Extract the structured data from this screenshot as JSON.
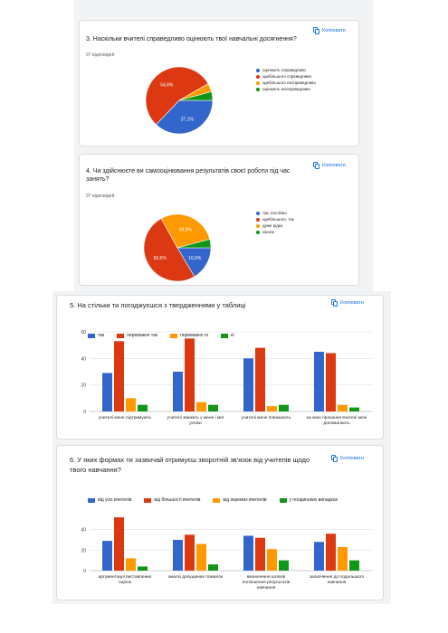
{
  "colors": {
    "blue": "#3366cc",
    "red": "#dc3912",
    "orange": "#ff9900",
    "green": "#109618"
  },
  "copy_label": "Копіювати",
  "cards": [
    {
      "question": "3. Наскільки вчителі справедливо оцінюють твої навчальні досягнення?",
      "responses": "97 відповідей",
      "chart_data": {
        "type": "pie",
        "labels": [
          "оцінюють справедливо",
          "здебільшого справедливо",
          "здебільшого несправедливо",
          "оцінюють несправедливо"
        ],
        "values": [
          37.1,
          54.6,
          4.1,
          4.2
        ],
        "data_labels": [
          "37,1%",
          "54,6%",
          "",
          ""
        ]
      }
    },
    {
      "question": "4. Чи здійснюєте ви самооцінювання результатів своєї роботи  під час занять?",
      "responses": "97 відповідей",
      "chart_data": {
        "type": "pie",
        "labels": [
          "так, постійно",
          "здебільшого, так",
          "дуже рідко",
          "ніколи"
        ],
        "values": [
          16.5,
          50.5,
          28.9,
          4.1
        ],
        "data_labels": [
          "16,5%",
          "50,5%",
          "28,9%",
          ""
        ]
      }
    },
    {
      "question": "5. На стільки ти погоджуєшся з твердженнями у таблиці",
      "chart_data": {
        "type": "bar",
        "categories": [
          "учителі мене підтримують",
          "учителі зважать у мене і мої успіхи",
          "учителі мене поважають",
          "на мою прохання вчителі мені допомагають"
        ],
        "ylim": [
          0,
          60
        ],
        "yticks": [
          0,
          20,
          40,
          60
        ],
        "series": [
          {
            "name": "так",
            "values": [
              29,
              30,
              40,
              45
            ]
          },
          {
            "name": "переважно так",
            "values": [
              53,
              55,
              48,
              44
            ]
          },
          {
            "name": "переважно ні",
            "values": [
              10,
              7,
              4,
              5
            ]
          },
          {
            "name": "ні",
            "values": [
              5,
              5,
              5,
              3
            ]
          }
        ]
      }
    },
    {
      "question": "6. У яких формах ти зазвичай  отримуєш зворотній зв'язок від учителів щодо твого навчання?",
      "chart_data": {
        "type": "bar",
        "categories": [
          "аргументація виставлених оцінок",
          "аналіз допущених помилок",
          "визначення шляхів поліпшення результатів навчання",
          "заохочення до подальшого навчання"
        ],
        "ylim": [
          0,
          60
        ],
        "yticks": [
          0,
          20,
          40
        ],
        "series": [
          {
            "name": "від усіх вчителів",
            "values": [
              29,
              30,
              34,
              28
            ]
          },
          {
            "name": "від більшості вчителів",
            "values": [
              52,
              35,
              32,
              36
            ]
          },
          {
            "name": "від окремих вчителів",
            "values": [
              12,
              26,
              21,
              23
            ]
          },
          {
            "name": "у поодиноких випадках",
            "values": [
              4,
              6,
              10,
              10
            ]
          }
        ]
      }
    }
  ]
}
